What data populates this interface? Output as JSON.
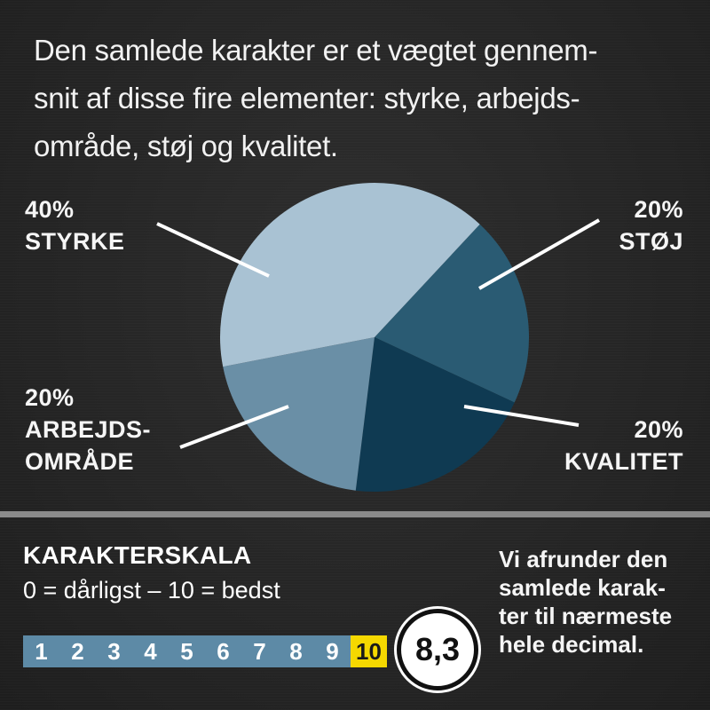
{
  "intro_lines": [
    "Den samlede karakter er et vægtet gennem-",
    "snit af disse fire elementer: styrke, arbejds-",
    "område, støj og kvalitet."
  ],
  "chart_data": {
    "type": "pie",
    "slices": [
      {
        "percent_label": "40%",
        "label_lines": [
          "STYRKE"
        ],
        "value": 40,
        "color": "#a9c2d3"
      },
      {
        "percent_label": "20%",
        "label_lines": [
          "STØJ"
        ],
        "value": 20,
        "color": "#2a5b73"
      },
      {
        "percent_label": "20%",
        "label_lines": [
          "KVALITET"
        ],
        "value": 20,
        "color": "#0f3a52"
      },
      {
        "percent_label": "20%",
        "label_lines": [
          "ARBEJDS-",
          "OMRÅDE"
        ],
        "value": 20,
        "color": "#6a8fa6"
      }
    ]
  },
  "scale": {
    "title": "KARAKTERSKALA",
    "description": "0 = dårligst – 10 = bedst",
    "numbers": [
      "1",
      "2",
      "3",
      "4",
      "5",
      "6",
      "7",
      "8",
      "9",
      "10"
    ],
    "cell_color": "#5d8aa6",
    "highlight_color": "#f5d800",
    "highlight_value": "10"
  },
  "score": "8,3",
  "note_lines": [
    "Vi afrunder den",
    "samlede karak-",
    "ter til nærmeste",
    "hele decimal."
  ]
}
